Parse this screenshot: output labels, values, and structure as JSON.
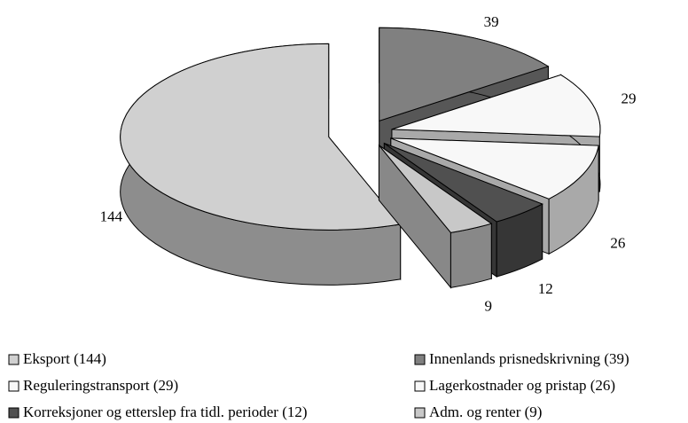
{
  "chart_data": {
    "type": "pie",
    "categories": [
      "Eksport (144)",
      "Innenlands prisnedskrivning (39)",
      "Reguleringstransport (29)",
      "Lagerkostnader og pristap (26)",
      "Korreksjoner og etterslep fra tidl. perioder (12)",
      "Adm. og renter (9)"
    ],
    "values": [
      144,
      39,
      29,
      26,
      12,
      9
    ],
    "colors": [
      "#d0d0d0",
      "#808080",
      "#f8f8f8",
      "#f8f8f8",
      "#505050",
      "#c8c8c8"
    ],
    "legend": "bottom"
  }
}
